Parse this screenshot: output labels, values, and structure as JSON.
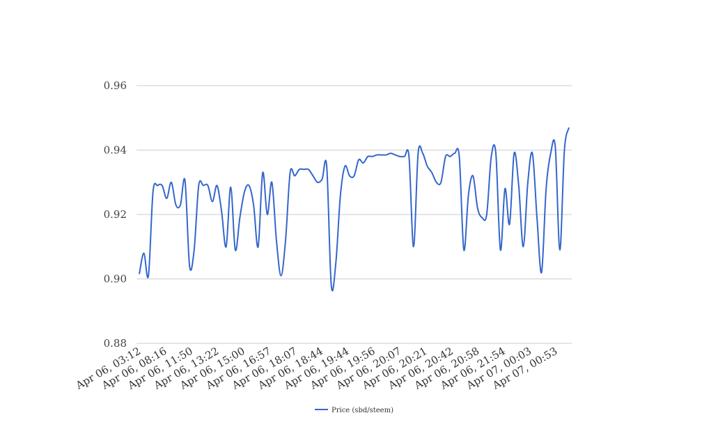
{
  "chart_data": {
    "type": "line",
    "title": "",
    "xlabel": "",
    "ylabel": "",
    "ylim": [
      0.88,
      0.96
    ],
    "y_ticks": [
      "0.88",
      "0.90",
      "0.92",
      "0.94",
      "0.96"
    ],
    "grid": true,
    "legend_position": "bottom",
    "x_tick_labels": [
      "Apr 06, 03:12",
      "Apr 06, 08:16",
      "Apr 06, 11:50",
      "Apr 06, 13:22",
      "Apr 06, 15:00",
      "Apr 06, 16:57",
      "Apr 06, 18:07",
      "Apr 06, 18:44",
      "Apr 06, 19:44",
      "Apr 06, 19:56",
      "Apr 06, 20:07",
      "Apr 06, 20:21",
      "Apr 06, 20:42",
      "Apr 06, 20:58",
      "Apr 06, 21:54",
      "Apr 07, 00:03",
      "Apr 07, 00:53"
    ],
    "series": [
      {
        "name": "Price (sbd/steem)",
        "color": "#3366cc",
        "values": [
          0.9015,
          0.908,
          0.901,
          0.927,
          0.929,
          0.929,
          0.925,
          0.93,
          0.923,
          0.923,
          0.9305,
          0.904,
          0.909,
          0.929,
          0.929,
          0.929,
          0.924,
          0.929,
          0.921,
          0.91,
          0.9285,
          0.909,
          0.919,
          0.927,
          0.929,
          0.923,
          0.91,
          0.933,
          0.92,
          0.93,
          0.912,
          0.901,
          0.912,
          0.933,
          0.932,
          0.934,
          0.934,
          0.934,
          0.932,
          0.93,
          0.931,
          0.935,
          0.898,
          0.905,
          0.926,
          0.935,
          0.932,
          0.932,
          0.937,
          0.936,
          0.938,
          0.938,
          0.9385,
          0.9385,
          0.9385,
          0.939,
          0.9385,
          0.938,
          0.938,
          0.938,
          0.91,
          0.939,
          0.939,
          0.935,
          0.933,
          0.93,
          0.93,
          0.938,
          0.938,
          0.939,
          0.938,
          0.909,
          0.926,
          0.932,
          0.922,
          0.919,
          0.92,
          0.938,
          0.939,
          0.909,
          0.928,
          0.917,
          0.939,
          0.929,
          0.91,
          0.93,
          0.939,
          0.919,
          0.902,
          0.928,
          0.939,
          0.941,
          0.909,
          0.94,
          0.947
        ]
      }
    ]
  }
}
